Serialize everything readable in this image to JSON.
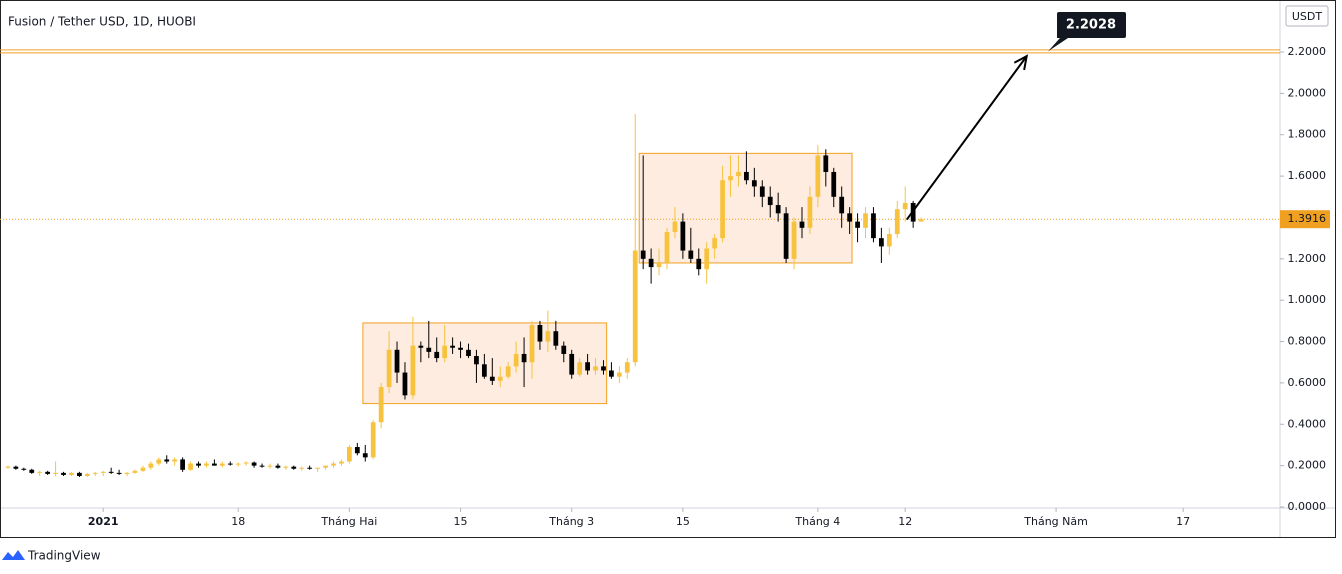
{
  "chart_data": {
    "type": "candlestick",
    "title": "Fusion / Tether USD, 1D, HUOBI",
    "currency": "USDT",
    "brand": "TradingView",
    "up_color": "#f7c33f",
    "down_color": "#000000",
    "box_color": "#f0a020",
    "ylim": [
      0,
      2.437
    ],
    "xlim": [
      -1,
      160.2
    ],
    "yticks": [
      {
        "value": 0,
        "label": "0.0000"
      },
      {
        "value": 0.2,
        "label": "0.2000"
      },
      {
        "value": 0.4,
        "label": "0.4000"
      },
      {
        "value": 0.6,
        "label": "0.6000"
      },
      {
        "value": 0.8,
        "label": "0.8000"
      },
      {
        "value": 1.0,
        "label": "1.0000"
      },
      {
        "value": 1.2,
        "label": "1.2000"
      },
      {
        "value": 1.4,
        "label": "1.4000"
      },
      {
        "value": 1.6,
        "label": "1.6000"
      },
      {
        "value": 1.8,
        "label": "1.8000"
      },
      {
        "value": 2.0,
        "label": "2.0000"
      },
      {
        "value": 2.2,
        "label": "2.2000"
      }
    ],
    "xticks": [
      {
        "value": 12,
        "label": "2021"
      },
      {
        "value": 29,
        "label": "18"
      },
      {
        "value": 43,
        "label": "Tháng Hai"
      },
      {
        "value": 57,
        "label": "15"
      },
      {
        "value": 71,
        "label": "Tháng 3"
      },
      {
        "value": 85,
        "label": "15"
      },
      {
        "value": 102,
        "label": "Tháng 4"
      },
      {
        "value": 113,
        "label": "12"
      },
      {
        "value": 132,
        "label": "Tháng Năm"
      },
      {
        "value": 148,
        "label": "17"
      }
    ],
    "target_price": 2.2028,
    "last_price": 1.3916,
    "boxes": [
      {
        "x": [
          44.7,
          75.4
        ],
        "y": [
          0.5,
          0.89
        ]
      },
      {
        "x": [
          79.5,
          106.3
        ],
        "y": [
          1.18,
          1.71
        ]
      }
    ],
    "arrow": {
      "x": [
        113.2,
        128.3
      ],
      "y": [
        1.39,
        2.18
      ]
    },
    "candles": [
      [
        0.19,
        0.2,
        0.185,
        0.195
      ],
      [
        0.195,
        0.2,
        0.18,
        0.185
      ],
      [
        0.185,
        0.19,
        0.175,
        0.18
      ],
      [
        0.18,
        0.185,
        0.16,
        0.165
      ],
      [
        0.165,
        0.175,
        0.15,
        0.17
      ],
      [
        0.17,
        0.175,
        0.155,
        0.16
      ],
      [
        0.16,
        0.22,
        0.15,
        0.165
      ],
      [
        0.165,
        0.17,
        0.15,
        0.155
      ],
      [
        0.155,
        0.17,
        0.15,
        0.165
      ],
      [
        0.165,
        0.17,
        0.145,
        0.15
      ],
      [
        0.15,
        0.165,
        0.145,
        0.16
      ],
      [
        0.16,
        0.17,
        0.15,
        0.165
      ],
      [
        0.165,
        0.175,
        0.15,
        0.17
      ],
      [
        0.17,
        0.19,
        0.16,
        0.165
      ],
      [
        0.165,
        0.18,
        0.155,
        0.16
      ],
      [
        0.16,
        0.17,
        0.15,
        0.165
      ],
      [
        0.165,
        0.18,
        0.16,
        0.175
      ],
      [
        0.175,
        0.2,
        0.17,
        0.19
      ],
      [
        0.19,
        0.22,
        0.18,
        0.21
      ],
      [
        0.21,
        0.24,
        0.2,
        0.23
      ],
      [
        0.23,
        0.25,
        0.21,
        0.22
      ],
      [
        0.22,
        0.24,
        0.2,
        0.23
      ],
      [
        0.23,
        0.24,
        0.17,
        0.18
      ],
      [
        0.18,
        0.22,
        0.175,
        0.21
      ],
      [
        0.21,
        0.22,
        0.19,
        0.2
      ],
      [
        0.2,
        0.22,
        0.19,
        0.21
      ],
      [
        0.21,
        0.23,
        0.2,
        0.2
      ],
      [
        0.2,
        0.22,
        0.19,
        0.21
      ],
      [
        0.21,
        0.22,
        0.2,
        0.205
      ],
      [
        0.205,
        0.215,
        0.195,
        0.21
      ],
      [
        0.21,
        0.22,
        0.2,
        0.215
      ],
      [
        0.215,
        0.22,
        0.19,
        0.2
      ],
      [
        0.2,
        0.21,
        0.19,
        0.195
      ],
      [
        0.195,
        0.21,
        0.185,
        0.2
      ],
      [
        0.2,
        0.21,
        0.185,
        0.19
      ],
      [
        0.19,
        0.2,
        0.18,
        0.195
      ],
      [
        0.195,
        0.2,
        0.18,
        0.185
      ],
      [
        0.185,
        0.195,
        0.175,
        0.19
      ],
      [
        0.19,
        0.2,
        0.18,
        0.185
      ],
      [
        0.185,
        0.19,
        0.17,
        0.19
      ],
      [
        0.19,
        0.2,
        0.18,
        0.2
      ],
      [
        0.2,
        0.22,
        0.19,
        0.21
      ],
      [
        0.21,
        0.23,
        0.2,
        0.22
      ],
      [
        0.22,
        0.3,
        0.21,
        0.29
      ],
      [
        0.29,
        0.31,
        0.25,
        0.26
      ],
      [
        0.26,
        0.3,
        0.22,
        0.24
      ],
      [
        0.24,
        0.42,
        0.23,
        0.41
      ],
      [
        0.41,
        0.6,
        0.38,
        0.58
      ],
      [
        0.58,
        0.85,
        0.55,
        0.76
      ],
      [
        0.76,
        0.8,
        0.6,
        0.65
      ],
      [
        0.65,
        0.7,
        0.52,
        0.54
      ],
      [
        0.54,
        0.92,
        0.52,
        0.78
      ],
      [
        0.78,
        0.8,
        0.7,
        0.77
      ],
      [
        0.77,
        0.9,
        0.72,
        0.75
      ],
      [
        0.75,
        0.82,
        0.7,
        0.72
      ],
      [
        0.72,
        0.88,
        0.7,
        0.78
      ],
      [
        0.78,
        0.82,
        0.74,
        0.77
      ],
      [
        0.77,
        0.8,
        0.72,
        0.76
      ],
      [
        0.76,
        0.79,
        0.72,
        0.73
      ],
      [
        0.73,
        0.76,
        0.6,
        0.69
      ],
      [
        0.69,
        0.74,
        0.62,
        0.63
      ],
      [
        0.63,
        0.72,
        0.59,
        0.61
      ],
      [
        0.61,
        0.68,
        0.58,
        0.63
      ],
      [
        0.63,
        0.7,
        0.62,
        0.68
      ],
      [
        0.68,
        0.8,
        0.65,
        0.74
      ],
      [
        0.74,
        0.82,
        0.58,
        0.7
      ],
      [
        0.7,
        0.9,
        0.62,
        0.88
      ],
      [
        0.88,
        0.9,
        0.76,
        0.8
      ],
      [
        0.8,
        0.95,
        0.75,
        0.85
      ],
      [
        0.85,
        0.9,
        0.76,
        0.78
      ],
      [
        0.78,
        0.8,
        0.7,
        0.74
      ],
      [
        0.74,
        0.76,
        0.62,
        0.64
      ],
      [
        0.64,
        0.72,
        0.63,
        0.7
      ],
      [
        0.7,
        0.74,
        0.64,
        0.66
      ],
      [
        0.66,
        0.72,
        0.64,
        0.68
      ],
      [
        0.68,
        0.71,
        0.64,
        0.66
      ],
      [
        0.66,
        0.7,
        0.62,
        0.63
      ],
      [
        0.63,
        0.68,
        0.6,
        0.65
      ],
      [
        0.65,
        0.72,
        0.62,
        0.7
      ],
      [
        0.7,
        1.9,
        0.68,
        1.24
      ],
      [
        1.24,
        1.7,
        1.15,
        1.2
      ],
      [
        1.2,
        1.25,
        1.08,
        1.16
      ],
      [
        1.16,
        1.25,
        1.12,
        1.18
      ],
      [
        1.18,
        1.35,
        1.15,
        1.33
      ],
      [
        1.33,
        1.45,
        1.3,
        1.38
      ],
      [
        1.38,
        1.42,
        1.2,
        1.24
      ],
      [
        1.24,
        1.35,
        1.18,
        1.2
      ],
      [
        1.2,
        1.25,
        1.12,
        1.15
      ],
      [
        1.15,
        1.28,
        1.08,
        1.25
      ],
      [
        1.25,
        1.32,
        1.2,
        1.3
      ],
      [
        1.3,
        1.65,
        1.28,
        1.58
      ],
      [
        1.58,
        1.7,
        1.5,
        1.6
      ],
      [
        1.6,
        1.7,
        1.55,
        1.62
      ],
      [
        1.62,
        1.72,
        1.56,
        1.58
      ],
      [
        1.58,
        1.64,
        1.5,
        1.55
      ],
      [
        1.55,
        1.58,
        1.45,
        1.5
      ],
      [
        1.5,
        1.55,
        1.4,
        1.46
      ],
      [
        1.46,
        1.52,
        1.38,
        1.42
      ],
      [
        1.42,
        1.45,
        1.18,
        1.2
      ],
      [
        1.2,
        1.4,
        1.15,
        1.38
      ],
      [
        1.38,
        1.45,
        1.3,
        1.35
      ],
      [
        1.35,
        1.55,
        1.32,
        1.5
      ],
      [
        1.5,
        1.75,
        1.45,
        1.7
      ],
      [
        1.7,
        1.73,
        1.55,
        1.62
      ],
      [
        1.62,
        1.64,
        1.45,
        1.5
      ],
      [
        1.5,
        1.55,
        1.35,
        1.42
      ],
      [
        1.42,
        1.45,
        1.32,
        1.38
      ],
      [
        1.38,
        1.42,
        1.28,
        1.35
      ],
      [
        1.35,
        1.45,
        1.3,
        1.42
      ],
      [
        1.42,
        1.45,
        1.28,
        1.3
      ],
      [
        1.3,
        1.35,
        1.18,
        1.26
      ],
      [
        1.26,
        1.35,
        1.22,
        1.32
      ],
      [
        1.32,
        1.48,
        1.3,
        1.44
      ],
      [
        1.44,
        1.55,
        1.38,
        1.47
      ],
      [
        1.47,
        1.48,
        1.35,
        1.38
      ],
      [
        1.38,
        1.4,
        1.38,
        1.3916
      ]
    ]
  }
}
